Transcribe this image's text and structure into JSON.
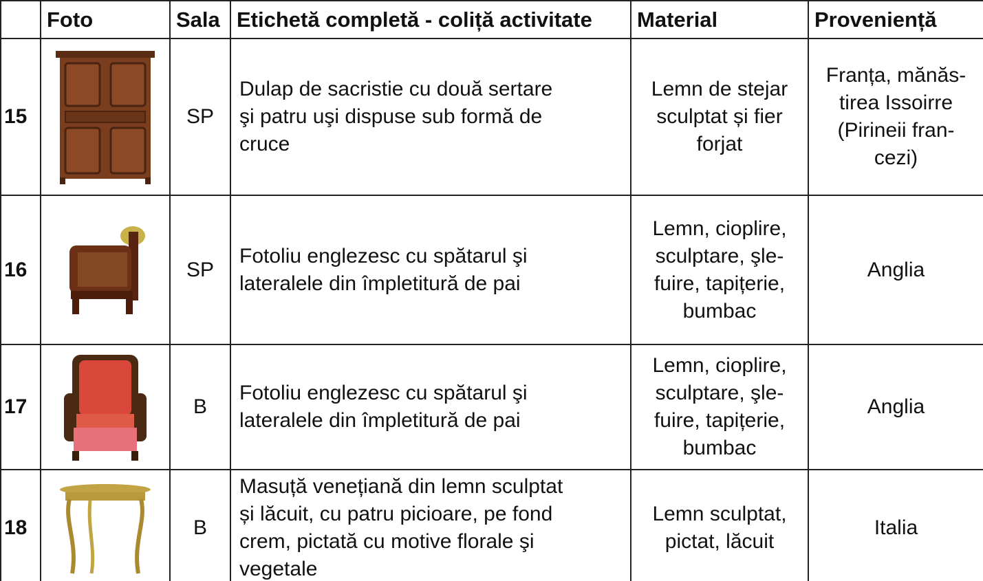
{
  "table": {
    "header": [
      "Foto",
      "Sala",
      "Etichetă completă - coliță activitate",
      "Material",
      "Proveniență"
    ],
    "rows": [
      {
        "number": 15,
        "sala": "SP",
        "label": [
          "Dulap de sacristie cu două sertare",
          "şi patru uşi dispuse sub formă de",
          "cruce"
        ],
        "material": [
          "Lemn de stejar",
          "sculptat și fier",
          "forjat"
        ],
        "provenance": [
          "Franța, mănăs-",
          "tirea Issoirre",
          "(Pirineii fran-",
          "cezi)"
        ]
      },
      {
        "number": 16,
        "sala": "SP",
        "label": [
          "Fotoliu englezesc cu spătarul şi",
          "lateralele din împletitură de pai"
        ],
        "material": [
          "Lemn, cioplire,",
          "sculptare, şle-",
          "fuire, tapițerie,",
          "bumbac"
        ],
        "provenance": [
          "Anglia"
        ]
      },
      {
        "number": 17,
        "sala": "B",
        "label": [
          "Fotoliu englezesc cu spătarul şi",
          "lateralele din împletitură de pai"
        ],
        "material": [
          "Lemn, cioplire,",
          "sculptare, şle-",
          "fuire, tapițerie,",
          "bumbac"
        ],
        "provenance": [
          "Anglia"
        ]
      },
      {
        "number": 18,
        "sala": "B",
        "label": [
          "Masuță venețiană din lemn sculptat",
          "și lăcuit, cu patru picioare, pe fond",
          "crem, pictată cu motive florale şi",
          "vegetale"
        ],
        "material": [
          "Lemn sculptat,",
          "pictat, lăcuit"
        ],
        "provenance": [
          "Italia"
        ]
      }
    ]
  }
}
